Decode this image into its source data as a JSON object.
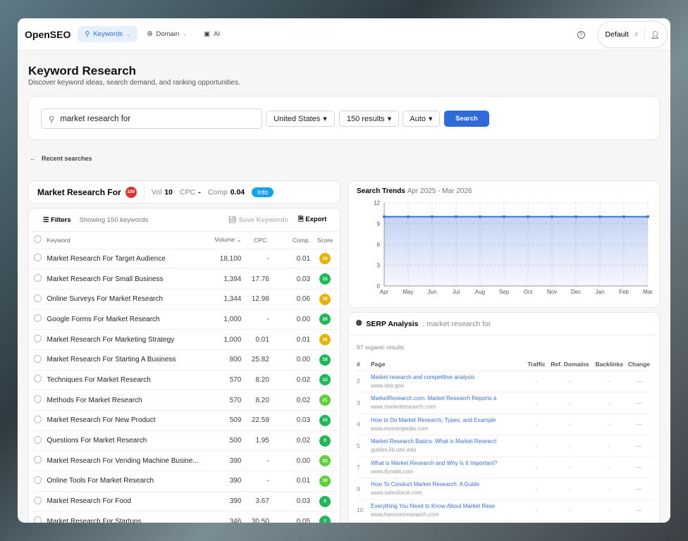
{
  "app": {
    "logo": "OpenSEO",
    "nav": [
      {
        "label": "Keywords",
        "active": true
      },
      {
        "label": "Domain"
      },
      {
        "label": "AI"
      }
    ],
    "project": "Default"
  },
  "page": {
    "title": "Keyword Research",
    "subtitle": "Discover keyword ideas, search demand, and ranking opportunities."
  },
  "search": {
    "query": "market research for",
    "country": "United States",
    "results": "150 results",
    "mode": "Auto",
    "button": "Search"
  },
  "recent": "Recent searches",
  "summary": {
    "keyword": "Market Research For",
    "difficulty": "100",
    "vol_label": "Vol",
    "vol": "10",
    "cpc_label": "CPC",
    "cpc": "-",
    "comp_label": "Comp",
    "comp": "0.04",
    "info": "Info"
  },
  "keywords": {
    "filters": "Filters",
    "showing": "Showing 150 keywords",
    "save": "Save Keywords",
    "export": "Export",
    "headers": [
      "Keyword",
      "Volume",
      "CPC",
      "Comp.",
      "Score"
    ],
    "rows": [
      [
        "Market Research For Target Audience",
        "18,100",
        "-",
        "0.01",
        "36",
        "#e6b100"
      ],
      [
        "Market Research For Small Business",
        "1,394",
        "17.76",
        "0.03",
        "15",
        "#1fb757"
      ],
      [
        "Online Surveys For Market Research",
        "1,344",
        "12.98",
        "0.06",
        "38",
        "#e6b100"
      ],
      [
        "Google Forms For Market Research",
        "1,000",
        "-",
        "0.00",
        "20",
        "#1fb757"
      ],
      [
        "Market Research For Marketing Strategy",
        "1,000",
        "0.01",
        "0.01",
        "36",
        "#e6b100"
      ],
      [
        "Market Research For Starting A Business",
        "800",
        "25.82",
        "0.00",
        "18",
        "#1fb757"
      ],
      [
        "Techniques For Market Research",
        "570",
        "8.20",
        "0.02",
        "12",
        "#1fb757"
      ],
      [
        "Methods For Market Research",
        "570",
        "8.20",
        "0.02",
        "21",
        "#5fcf3c"
      ],
      [
        "Market Research For New Product",
        "509",
        "22.59",
        "0.03",
        "15",
        "#1fb757"
      ],
      [
        "Questions For Market Research",
        "500",
        "1.95",
        "0.02",
        "0",
        "#1fb757"
      ],
      [
        "Market Research For Vending Machine Busine...",
        "390",
        "-",
        "0.00",
        "22",
        "#5fcf3c"
      ],
      [
        "Online Tools For Market Research",
        "390",
        "-",
        "0.01",
        "30",
        "#5fcf3c"
      ],
      [
        "Market Research For Food",
        "390",
        "3.67",
        "0.03",
        "2",
        "#1fb757"
      ],
      [
        "Market Research For Startups",
        "346",
        "30.50",
        "0.05",
        "7",
        "#1fb757"
      ]
    ]
  },
  "chart_data": {
    "type": "area",
    "title": "Search Trends",
    "subtitle": "Apr 2025 - Mar 2026",
    "categories": [
      "Apr",
      "May",
      "Jun",
      "Jul",
      "Aug",
      "Sep",
      "Oct",
      "Nov",
      "Dec",
      "Jan",
      "Feb",
      "Mar"
    ],
    "values": [
      10,
      10,
      10,
      10,
      10,
      10,
      10,
      10,
      10,
      10,
      10,
      10
    ],
    "ylim": [
      0,
      12
    ],
    "yticks": [
      0,
      3,
      6,
      9,
      12
    ],
    "grid": true,
    "color": "#3b6fd8"
  },
  "serp": {
    "title": "SERP Analysis",
    "query": ": market research for",
    "organic": "97 organic results",
    "headers": [
      "#",
      "Page",
      "Traffic",
      "Ref. Domains",
      "Backlinks",
      "Change"
    ],
    "rows": [
      [
        "2",
        "Market research and competitive analysis",
        "www.sba.gov"
      ],
      [
        "3",
        "MarketResearch.com: Market Research Reports a",
        "www.marketresearch.com"
      ],
      [
        "4",
        "How to Do Market Research, Types, and Example",
        "www.investopedia.com"
      ],
      [
        "5",
        "Market Research Basics: What is Market Researcl",
        "guides.lib.unc.edu"
      ],
      [
        "7",
        "What is Market Research and Why Is It Important?",
        "www.dynata.com"
      ],
      [
        "9",
        "How To Conduct Market Research: A Guide",
        "www.salesforce.com"
      ],
      [
        "10",
        "Everything You Need to Know About Market Rese",
        "www.hanoverresearch.com"
      ]
    ],
    "empty": "-",
    "change": "—"
  }
}
